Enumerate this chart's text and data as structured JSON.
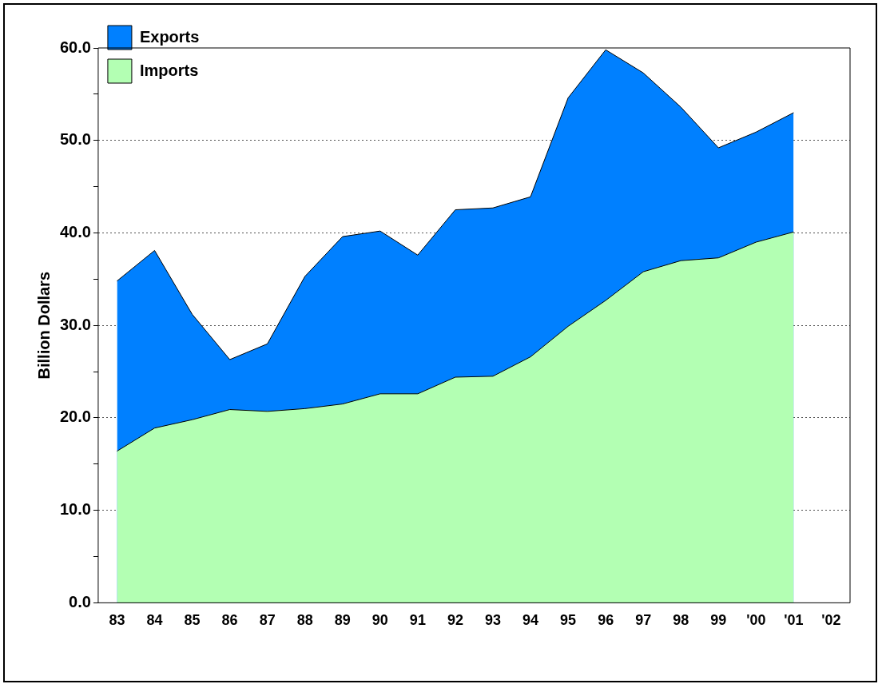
{
  "chart_data": {
    "type": "area",
    "ylabel": "Billion Dollars",
    "categories": [
      "83",
      "84",
      "85",
      "86",
      "87",
      "88",
      "89",
      "90",
      "91",
      "92",
      "93",
      "94",
      "95",
      "96",
      "97",
      "98",
      "99",
      "'00",
      "'01",
      "'02"
    ],
    "series": [
      {
        "name": "Exports",
        "color": "#0080ff",
        "values": [
          34.8,
          38.1,
          31.2,
          26.3,
          28.0,
          35.3,
          39.6,
          40.2,
          37.6,
          42.5,
          42.7,
          43.9,
          54.6,
          59.8,
          57.3,
          53.6,
          49.2,
          50.9,
          53.0,
          null
        ]
      },
      {
        "name": "Imports",
        "color": "#b3ffb3",
        "values": [
          16.4,
          18.9,
          19.8,
          20.9,
          20.7,
          21.0,
          21.5,
          22.6,
          22.6,
          24.4,
          24.5,
          26.6,
          29.9,
          32.7,
          35.8,
          37.0,
          37.3,
          39.0,
          40.1,
          null
        ]
      }
    ],
    "ylim": [
      0,
      60
    ],
    "yticks": [
      {
        "value": 0,
        "label": "0.0"
      },
      {
        "value": 5,
        "label": null
      },
      {
        "value": 10,
        "label": "10.0"
      },
      {
        "value": 15,
        "label": null
      },
      {
        "value": 20,
        "label": "20.0"
      },
      {
        "value": 25,
        "label": null
      },
      {
        "value": 30,
        "label": "30.0"
      },
      {
        "value": 35,
        "label": null
      },
      {
        "value": 40,
        "label": "40.0"
      },
      {
        "value": 45,
        "label": null
      },
      {
        "value": 50,
        "label": "50.0"
      },
      {
        "value": 55,
        "label": null
      },
      {
        "value": 60,
        "label": "60.0"
      }
    ],
    "grid": "y",
    "legend": "top left",
    "line_style": "solid",
    "marker": "none"
  }
}
